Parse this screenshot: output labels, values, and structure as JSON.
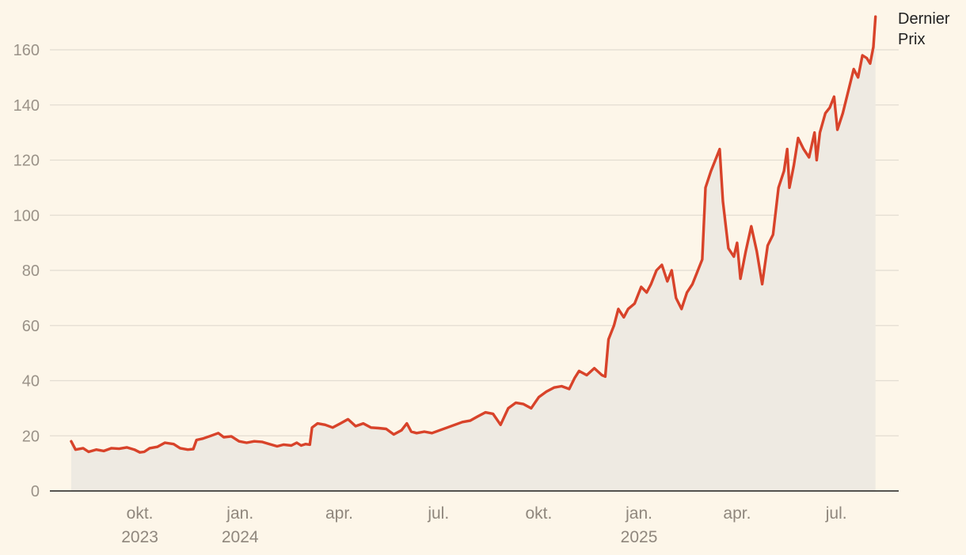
{
  "colors": {
    "background": "#fdf6e9",
    "line": "#d8432a",
    "area": "#eeeae2",
    "grid": "#e3ddd2",
    "axis": "#1e1e1e"
  },
  "chart_data": {
    "type": "area",
    "title": "",
    "xlabel": "",
    "ylabel": "",
    "ylim": [
      0,
      172
    ],
    "yticks": [
      0,
      20,
      40,
      60,
      80,
      100,
      120,
      140,
      160
    ],
    "grid": "horizontal",
    "x_range": [
      "2023-07-25",
      "2025-08-12"
    ],
    "x_ticks": [
      {
        "date": "2023-10-01",
        "label": "okt.",
        "year": "2023"
      },
      {
        "date": "2024-01-01",
        "label": "jan.",
        "year": "2024"
      },
      {
        "date": "2024-04-01",
        "label": "apr.",
        "year": ""
      },
      {
        "date": "2024-07-01",
        "label": "jul.",
        "year": ""
      },
      {
        "date": "2024-10-01",
        "label": "okt.",
        "year": ""
      },
      {
        "date": "2025-01-01",
        "label": "jan.",
        "year": "2025"
      },
      {
        "date": "2025-04-01",
        "label": "apr.",
        "year": ""
      },
      {
        "date": "2025-07-01",
        "label": "jul.",
        "year": ""
      }
    ],
    "series": [
      {
        "name": "Dernier Prix",
        "label_lines": [
          "Dernier",
          "Prix"
        ],
        "points": [
          [
            "2023-07-30",
            18.0
          ],
          [
            "2023-08-03",
            15.0
          ],
          [
            "2023-08-10",
            15.5
          ],
          [
            "2023-08-15",
            14.2
          ],
          [
            "2023-08-22",
            15.0
          ],
          [
            "2023-08-29",
            14.5
          ],
          [
            "2023-09-05",
            15.5
          ],
          [
            "2023-09-12",
            15.3
          ],
          [
            "2023-09-19",
            15.8
          ],
          [
            "2023-09-26",
            15.0
          ],
          [
            "2023-10-01",
            14.0
          ],
          [
            "2023-10-05",
            14.2
          ],
          [
            "2023-10-10",
            15.5
          ],
          [
            "2023-10-17",
            16.0
          ],
          [
            "2023-10-24",
            17.5
          ],
          [
            "2023-11-01",
            17.0
          ],
          [
            "2023-11-07",
            15.5
          ],
          [
            "2023-11-14",
            15.0
          ],
          [
            "2023-11-19",
            15.2
          ],
          [
            "2023-11-22",
            18.5
          ],
          [
            "2023-11-28",
            19.0
          ],
          [
            "2023-12-05",
            20.0
          ],
          [
            "2023-12-12",
            21.0
          ],
          [
            "2023-12-17",
            19.5
          ],
          [
            "2023-12-24",
            19.8
          ],
          [
            "2023-12-31",
            18.0
          ],
          [
            "2024-01-07",
            17.5
          ],
          [
            "2024-01-14",
            18.0
          ],
          [
            "2024-01-21",
            17.8
          ],
          [
            "2024-01-28",
            17.0
          ],
          [
            "2024-02-04",
            16.2
          ],
          [
            "2024-02-10",
            16.8
          ],
          [
            "2024-02-17",
            16.5
          ],
          [
            "2024-02-22",
            17.5
          ],
          [
            "2024-02-26",
            16.5
          ],
          [
            "2024-03-01",
            17.0
          ],
          [
            "2024-03-05",
            16.8
          ],
          [
            "2024-03-07",
            23.0
          ],
          [
            "2024-03-12",
            24.5
          ],
          [
            "2024-03-19",
            24.0
          ],
          [
            "2024-03-26",
            23.0
          ],
          [
            "2024-04-02",
            24.5
          ],
          [
            "2024-04-09",
            26.0
          ],
          [
            "2024-04-16",
            23.5
          ],
          [
            "2024-04-23",
            24.5
          ],
          [
            "2024-04-30",
            23.0
          ],
          [
            "2024-05-07",
            22.8
          ],
          [
            "2024-05-14",
            22.5
          ],
          [
            "2024-05-21",
            20.5
          ],
          [
            "2024-05-28",
            22.0
          ],
          [
            "2024-06-02",
            24.5
          ],
          [
            "2024-06-06",
            21.5
          ],
          [
            "2024-06-11",
            21.0
          ],
          [
            "2024-06-18",
            21.5
          ],
          [
            "2024-06-25",
            21.0
          ],
          [
            "2024-07-02",
            22.0
          ],
          [
            "2024-07-09",
            23.0
          ],
          [
            "2024-07-16",
            24.0
          ],
          [
            "2024-07-23",
            25.0
          ],
          [
            "2024-07-30",
            25.5
          ],
          [
            "2024-08-06",
            27.0
          ],
          [
            "2024-08-13",
            28.5
          ],
          [
            "2024-08-20",
            28.0
          ],
          [
            "2024-08-27",
            24.0
          ],
          [
            "2024-09-03",
            30.0
          ],
          [
            "2024-09-10",
            32.0
          ],
          [
            "2024-09-17",
            31.5
          ],
          [
            "2024-09-24",
            30.0
          ],
          [
            "2024-10-01",
            34.0
          ],
          [
            "2024-10-08",
            36.0
          ],
          [
            "2024-10-15",
            37.5
          ],
          [
            "2024-10-22",
            38.0
          ],
          [
            "2024-10-29",
            37.0
          ],
          [
            "2024-11-03",
            41.0
          ],
          [
            "2024-11-07",
            43.5
          ],
          [
            "2024-11-14",
            42.0
          ],
          [
            "2024-11-21",
            44.5
          ],
          [
            "2024-11-28",
            42.0
          ],
          [
            "2024-12-01",
            41.5
          ],
          [
            "2024-12-04",
            55.0
          ],
          [
            "2024-12-09",
            60.0
          ],
          [
            "2024-12-13",
            66.0
          ],
          [
            "2024-12-18",
            63.0
          ],
          [
            "2024-12-22",
            66.0
          ],
          [
            "2024-12-28",
            68.0
          ],
          [
            "2025-01-03",
            74.0
          ],
          [
            "2025-01-08",
            72.0
          ],
          [
            "2025-01-12",
            75.0
          ],
          [
            "2025-01-17",
            80.0
          ],
          [
            "2025-01-22",
            82.0
          ],
          [
            "2025-01-27",
            76.0
          ],
          [
            "2025-01-31",
            80.0
          ],
          [
            "2025-02-04",
            70.0
          ],
          [
            "2025-02-09",
            66.0
          ],
          [
            "2025-02-14",
            72.0
          ],
          [
            "2025-02-19",
            75.0
          ],
          [
            "2025-02-24",
            80.0
          ],
          [
            "2025-02-28",
            84.0
          ],
          [
            "2025-03-03",
            110.0
          ],
          [
            "2025-03-08",
            116.0
          ],
          [
            "2025-03-13",
            121.0
          ],
          [
            "2025-03-16",
            124.0
          ],
          [
            "2025-03-19",
            105.0
          ],
          [
            "2025-03-24",
            88.0
          ],
          [
            "2025-03-29",
            85.0
          ],
          [
            "2025-04-01",
            90.0
          ],
          [
            "2025-04-04",
            77.0
          ],
          [
            "2025-04-09",
            87.0
          ],
          [
            "2025-04-14",
            96.0
          ],
          [
            "2025-04-19",
            87.0
          ],
          [
            "2025-04-24",
            75.0
          ],
          [
            "2025-04-29",
            89.0
          ],
          [
            "2025-05-04",
            93.0
          ],
          [
            "2025-05-09",
            110.0
          ],
          [
            "2025-05-14",
            116.0
          ],
          [
            "2025-05-17",
            124.0
          ],
          [
            "2025-05-19",
            110.0
          ],
          [
            "2025-05-23",
            118.0
          ],
          [
            "2025-05-27",
            128.0
          ],
          [
            "2025-06-01",
            124.0
          ],
          [
            "2025-06-06",
            121.0
          ],
          [
            "2025-06-11",
            130.0
          ],
          [
            "2025-06-13",
            120.0
          ],
          [
            "2025-06-16",
            130.0
          ],
          [
            "2025-06-21",
            137.0
          ],
          [
            "2025-06-25",
            139.0
          ],
          [
            "2025-06-29",
            143.0
          ],
          [
            "2025-07-02",
            131.0
          ],
          [
            "2025-07-07",
            137.0
          ],
          [
            "2025-07-12",
            145.0
          ],
          [
            "2025-07-17",
            153.0
          ],
          [
            "2025-07-21",
            150.0
          ],
          [
            "2025-07-25",
            158.0
          ],
          [
            "2025-07-29",
            157.0
          ],
          [
            "2025-08-01",
            155.0
          ],
          [
            "2025-08-04",
            161.0
          ],
          [
            "2025-08-06",
            172.0
          ]
        ]
      }
    ]
  }
}
